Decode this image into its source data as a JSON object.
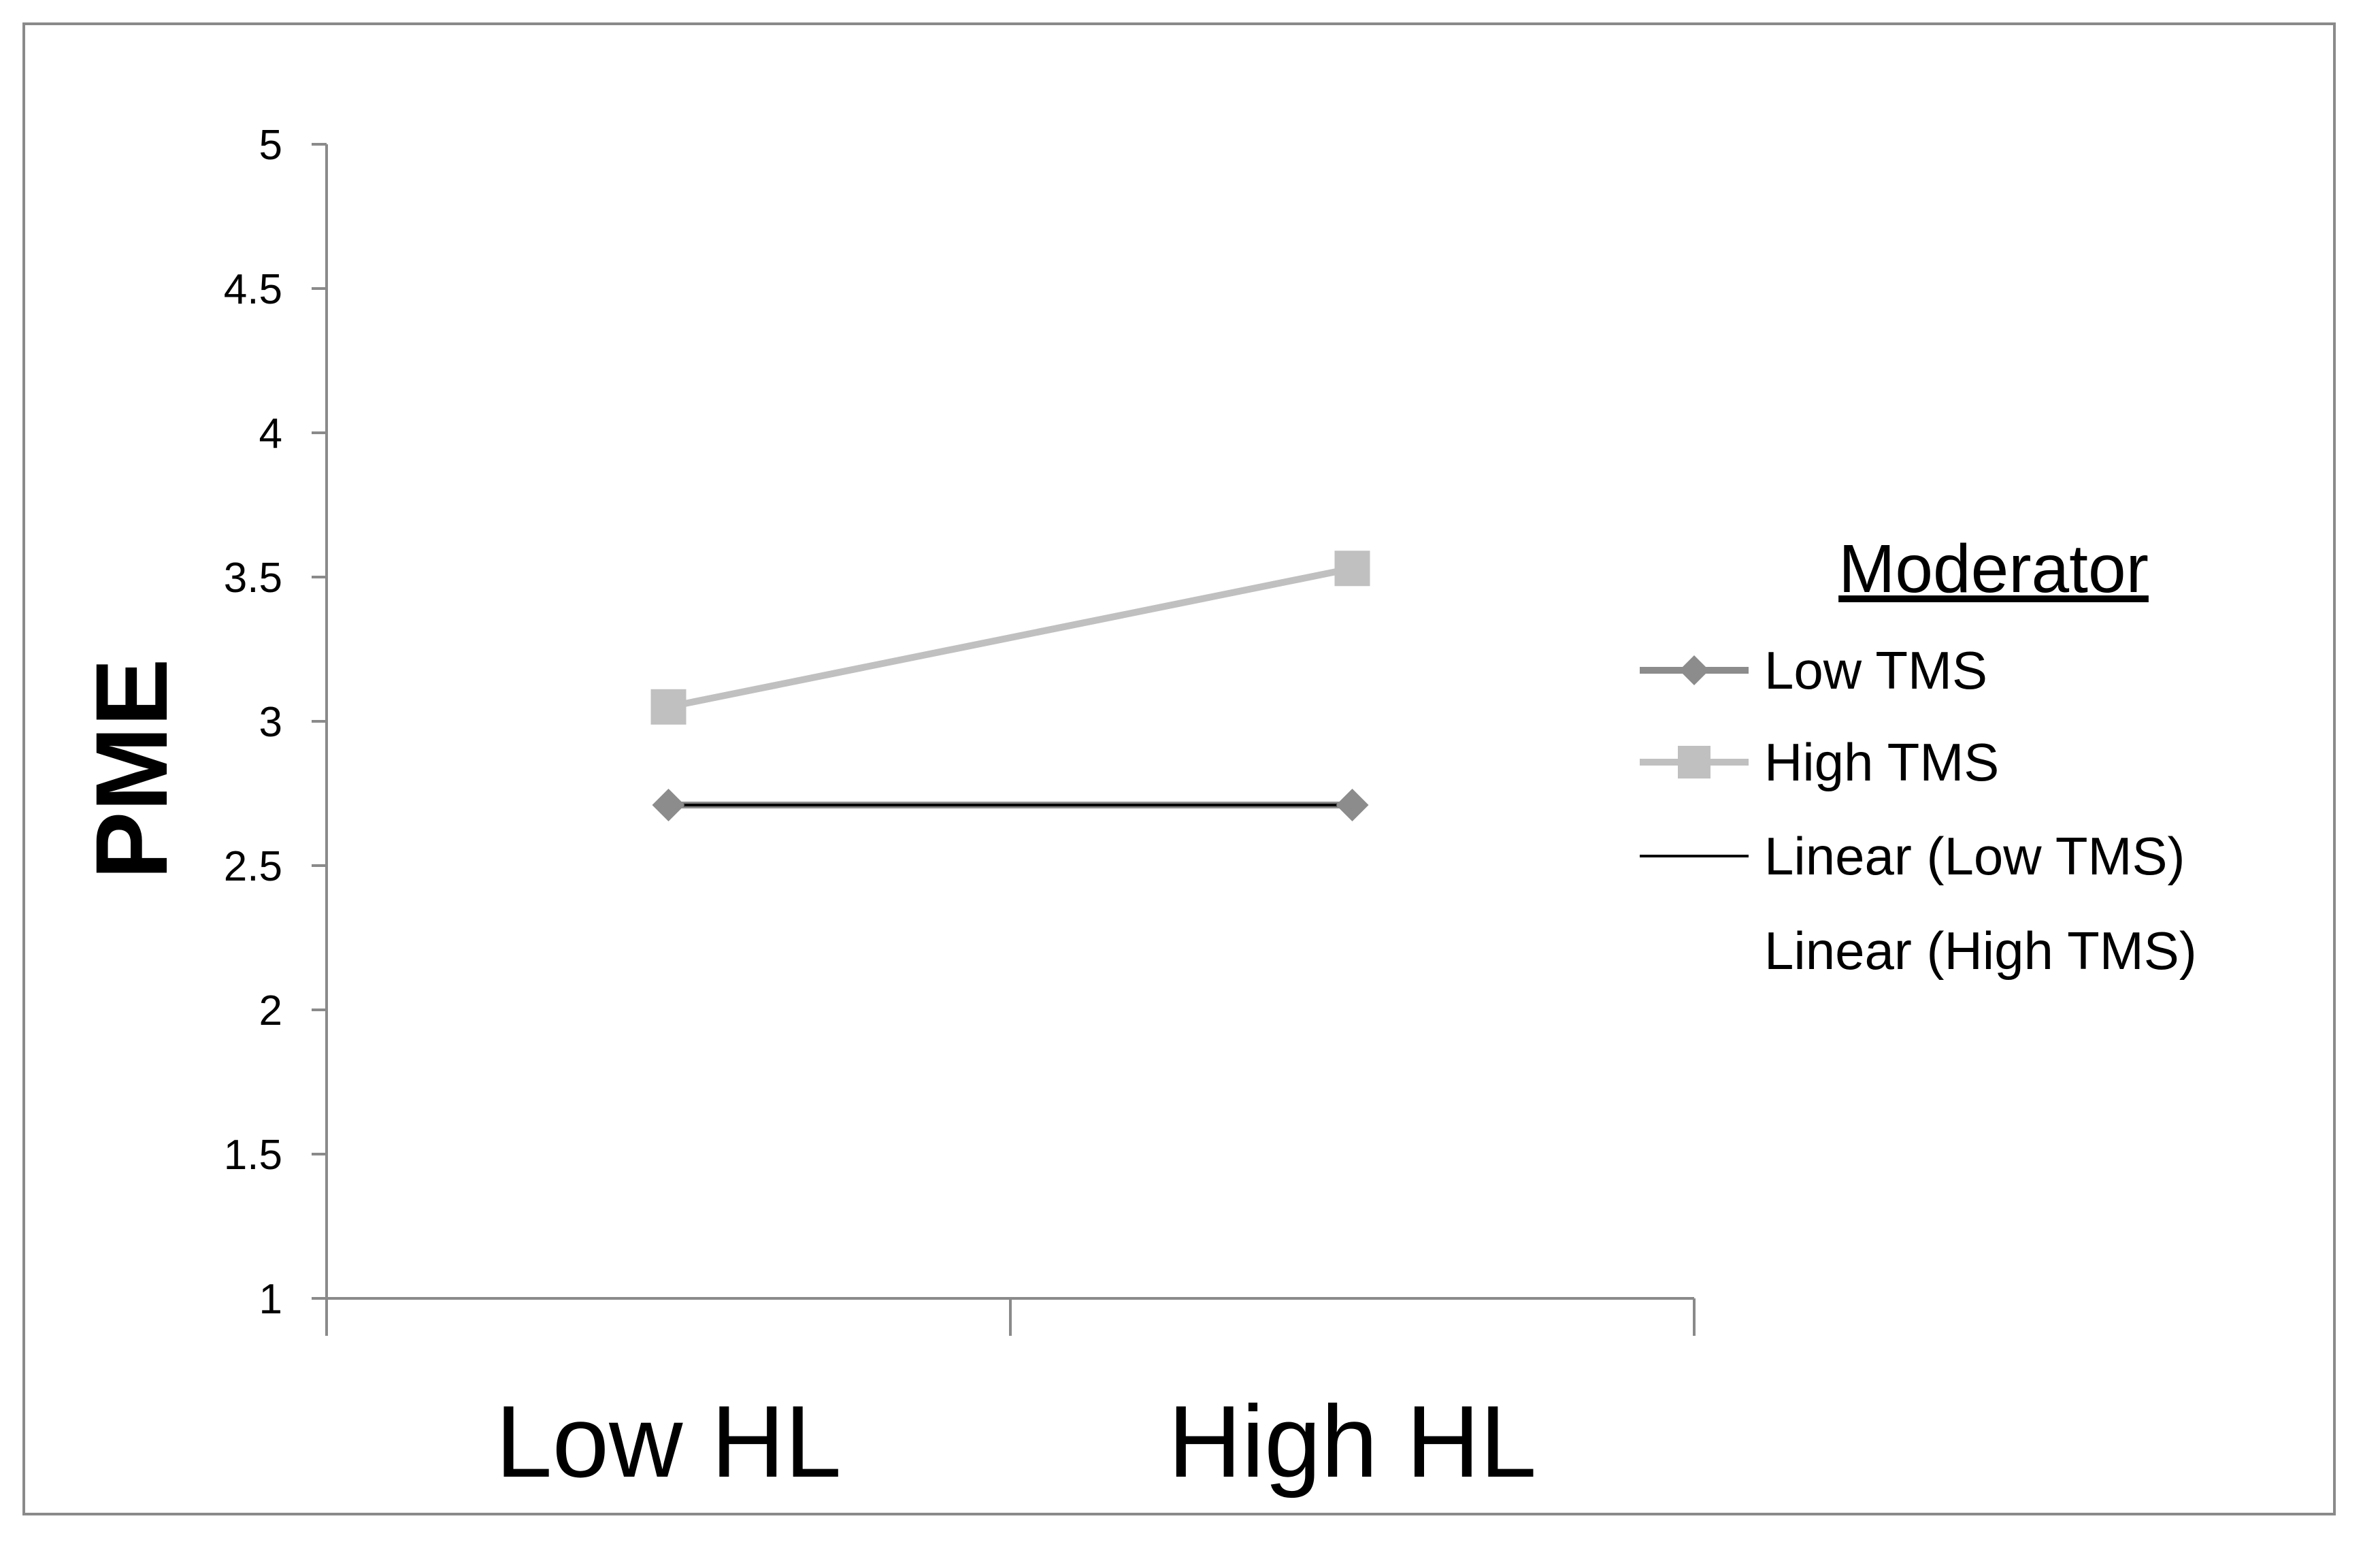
{
  "chart_data": {
    "type": "line",
    "categories": [
      "Low HL",
      "High HL"
    ],
    "ylabel": "PME",
    "xlabel": "",
    "ylim": [
      1,
      5
    ],
    "yticks": [
      "1",
      "1.5",
      "2",
      "2.5",
      "3",
      "3.5",
      "4",
      "4.5",
      "5"
    ],
    "grid": false,
    "legend": {
      "title": "Moderator",
      "placement": "right",
      "entries": [
        "Low TMS",
        "High TMS",
        "Linear (Low TMS)",
        "Linear (High TMS)"
      ]
    },
    "series": [
      {
        "name": "Low TMS",
        "values": [
          2.71,
          2.71
        ],
        "color": "#8c8c8c",
        "marker": "diamond"
      },
      {
        "name": "High TMS",
        "values": [
          3.05,
          3.53
        ],
        "color": "#c0c0c0",
        "marker": "square"
      }
    ],
    "trendlines": [
      {
        "name": "Linear (Low TMS)",
        "of": "Low TMS",
        "color": "#000000"
      },
      {
        "name": "Linear (High TMS)",
        "of": "High TMS",
        "color": "none"
      }
    ],
    "colors": {
      "axis": "#8a8a8a",
      "frame": "#8a8a8a"
    }
  }
}
